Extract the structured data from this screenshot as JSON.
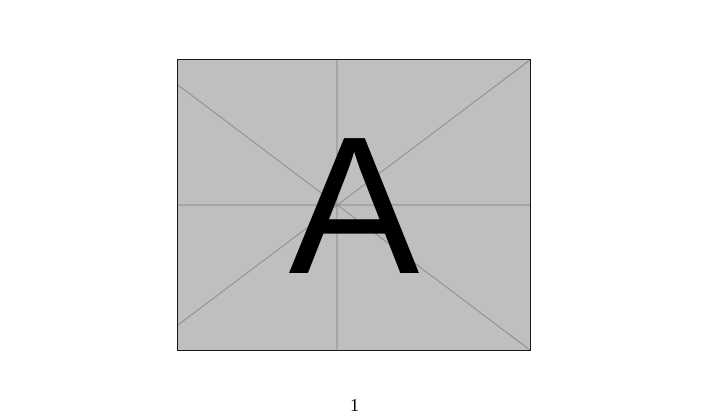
{
  "figure": {
    "placeholder_letter": "A",
    "fill_color": "#bfbfbf",
    "line_color": "#8c8c8c",
    "border_color": "#1a1a1a"
  },
  "footer": {
    "page_number": "1"
  }
}
